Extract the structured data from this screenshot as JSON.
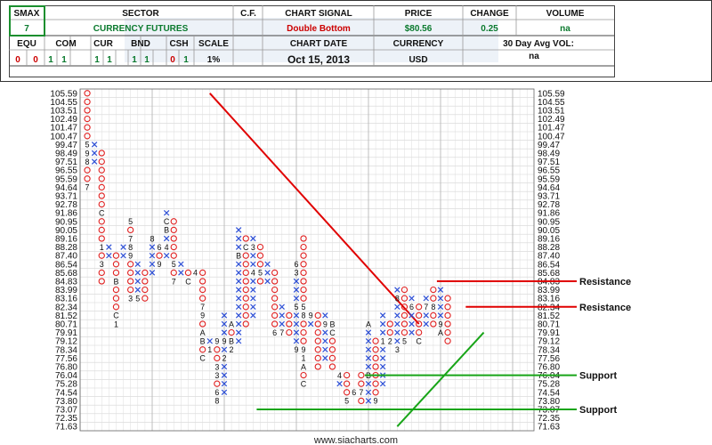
{
  "header": {
    "smax_label": "SMAX",
    "smax_value": "7",
    "sector_label": "SECTOR",
    "sector_value": "CURRENCY FUTURES",
    "cf_label": "C.F.",
    "signal_label": "CHART SIGNAL",
    "signal_value": "Double Bottom",
    "price_label": "PRICE",
    "price_value": "$80.56",
    "change_label": "CHANGE",
    "change_value": "0.25",
    "volume_label": "VOLUME",
    "volume_value": "na",
    "equ_label": "EQU",
    "com_label": "COM",
    "cur_label": "CUR",
    "bnd_label": "BND",
    "csh_label": "CSH",
    "scale_label": "SCALE",
    "date_label": "CHART DATE",
    "currency_label": "CURRENCY",
    "avgvol_label": "30 Day Avg VOL:",
    "equ_values": [
      "0",
      "0"
    ],
    "com_values": [
      "1",
      "1"
    ],
    "cur_values": [
      "1",
      "1"
    ],
    "bnd_values": [
      "1",
      "1"
    ],
    "csh_values": [
      "0",
      "1"
    ],
    "scale_value": "1%",
    "date_value": "Oct 15, 2013",
    "currency_value": "USD",
    "avgvol_value": "na",
    "colors": {
      "signal": "#cc0000",
      "value": "#0b7a2e",
      "accent_box": "#1a8f2e"
    }
  },
  "chart_data": {
    "type": "point-and-figure",
    "title": "",
    "y_ticks": [
      "105.59",
      "104.55",
      "103.51",
      "102.49",
      "101.47",
      "100.47",
      "99.47",
      "98.49",
      "97.51",
      "96.55",
      "95.59",
      "94.64",
      "93.71",
      "92.78",
      "91.86",
      "90.95",
      "90.05",
      "89.16",
      "88.28",
      "87.40",
      "86.54",
      "85.68",
      "84.83",
      "83.99",
      "83.16",
      "82.34",
      "81.52",
      "80.71",
      "79.91",
      "79.12",
      "78.34",
      "77.56",
      "76.80",
      "76.04",
      "75.28",
      "74.54",
      "73.80",
      "73.07",
      "72.35",
      "71.63"
    ],
    "columns": [
      {
        "type": "O",
        "from": 105.59,
        "to": 94.64,
        "labels": {
          "99.47": "5",
          "98.49": "9",
          "97.51": "8",
          "94.64": "7"
        }
      },
      {
        "type": "X",
        "from": 97.51,
        "to": 99.47
      },
      {
        "type": "O",
        "from": 98.49,
        "to": 84.83,
        "labels": {
          "91.86": "C",
          "88.28": "1",
          "86.54": "3"
        }
      },
      {
        "type": "X",
        "from": 87.4,
        "to": 88.28
      },
      {
        "type": "O",
        "from": 87.4,
        "to": 80.71,
        "labels": {
          "84.83": "B",
          "81.52": "C",
          "80.71": "1"
        }
      },
      {
        "type": "X",
        "from": 87.4,
        "to": 88.28
      },
      {
        "type": "O",
        "from": 90.95,
        "to": 83.16,
        "labels": {
          "90.95": "5",
          "89.16": "7",
          "88.28": "8",
          "87.40": "9",
          "83.16": "3"
        }
      },
      {
        "type": "X",
        "from": 83.16,
        "to": 86.54,
        "labels": {
          "83.16": "5"
        }
      },
      {
        "type": "O",
        "from": 85.68,
        "to": 83.16
      },
      {
        "type": "X",
        "from": 85.68,
        "to": 89.16,
        "labels": {
          "89.16": "8"
        }
      },
      {
        "type": "O",
        "from": 88.28,
        "to": 86.54,
        "labels": {
          "88.28": "6",
          "86.54": "9"
        }
      },
      {
        "type": "X",
        "from": 87.4,
        "to": 91.86,
        "labels": {
          "90.95": "C",
          "90.05": "B",
          "88.28": "4"
        }
      },
      {
        "type": "O",
        "from": 90.95,
        "to": 84.83,
        "labels": {
          "86.54": "5",
          "84.83": "7"
        }
      },
      {
        "type": "X",
        "from": 85.68,
        "to": 86.54
      },
      {
        "type": "O",
        "from": 85.68,
        "to": 84.83,
        "labels": {
          "84.83": "C"
        }
      },
      {
        "type": "X",
        "from": 85.68,
        "to": 85.68,
        "labels": {
          "85.68": "4"
        }
      },
      {
        "type": "O",
        "from": 85.68,
        "to": 77.56,
        "labels": {
          "82.34": "7",
          "81.52": "9",
          "79.91": "A",
          "79.12": "B",
          "77.56": "C"
        }
      },
      {
        "type": "X",
        "from": 78.34,
        "to": 79.12,
        "labels": {
          "78.34": "1"
        }
      },
      {
        "type": "O",
        "from": 79.12,
        "to": 73.8,
        "labels": {
          "79.12": "9",
          "76.80": "3",
          "76.04": "3",
          "74.54": "6",
          "73.80": "8"
        }
      },
      {
        "type": "X",
        "from": 74.54,
        "to": 81.52,
        "labels": {
          "79.12": "9",
          "77.56": "2"
        }
      },
      {
        "type": "O",
        "from": 80.71,
        "to": 78.34,
        "labels": {
          "80.71": "A",
          "79.12": "B",
          "78.34": "2"
        }
      },
      {
        "type": "X",
        "from": 79.12,
        "to": 90.05,
        "labels": {
          "87.40": "B"
        }
      },
      {
        "type": "O",
        "from": 89.16,
        "to": 80.71,
        "labels": {
          "88.28": "C"
        }
      },
      {
        "type": "X",
        "from": 81.52,
        "to": 89.16,
        "labels": {
          "88.28": "3",
          "85.68": "4"
        }
      },
      {
        "type": "O",
        "from": 88.28,
        "to": 84.83,
        "labels": {
          "85.68": "5"
        }
      },
      {
        "type": "X",
        "from": 84.83,
        "to": 86.54
      },
      {
        "type": "O",
        "from": 85.68,
        "to": 79.91,
        "labels": {
          "79.91": "6"
        }
      },
      {
        "type": "X",
        "from": 79.91,
        "to": 82.34,
        "labels": {
          "79.91": "7"
        }
      },
      {
        "type": "O",
        "from": 81.52,
        "to": 79.91
      },
      {
        "type": "X",
        "from": 78.34,
        "to": 86.54,
        "labels": {
          "78.34": "9",
          "86.54": "6",
          "85.68": "3",
          "82.34": "5"
        }
      },
      {
        "type": "O",
        "from": 89.16,
        "to": 75.28,
        "labels": {
          "82.34": "5",
          "81.52": "8",
          "78.34": "9",
          "77.56": "1",
          "76.80": "A",
          "75.28": "C"
        }
      },
      {
        "type": "X",
        "from": 80.71,
        "to": 81.52,
        "labels": {
          "81.52": "9"
        }
      },
      {
        "type": "O",
        "from": 81.52,
        "to": 76.8,
        "labels": {
          "82.34": "9"
        }
      },
      {
        "type": "X",
        "from": 77.56,
        "to": 81.52,
        "labels": {
          "80.71": "9"
        }
      },
      {
        "type": "O",
        "from": 80.71,
        "to": 76.8,
        "labels": {
          "80.71": "B",
          "79.91": "C"
        }
      },
      {
        "type": "X",
        "from": 75.28,
        "to": 76.04,
        "labels": {
          "76.04": "4"
        }
      },
      {
        "type": "O",
        "from": 76.04,
        "to": 73.8,
        "labels": {
          "73.80": "5"
        }
      },
      {
        "type": "X",
        "from": 74.54,
        "to": 74.54,
        "labels": {
          "74.54": "6"
        }
      },
      {
        "type": "O",
        "from": 76.04,
        "to": 73.8,
        "labels": {
          "74.54": "7"
        }
      },
      {
        "type": "X",
        "from": 73.8,
        "to": 80.71,
        "labels": {
          "80.71": "A",
          "76.04": "B"
        }
      },
      {
        "type": "O",
        "from": 79.12,
        "to": 73.8,
        "labels": {
          "73.80": "9"
        }
      },
      {
        "type": "X",
        "from": 75.28,
        "to": 81.52,
        "labels": {
          "79.12": "1"
        }
      },
      {
        "type": "O",
        "from": 80.71,
        "to": 79.12,
        "labels": {
          "79.12": "2"
        }
      },
      {
        "type": "X",
        "from": 78.34,
        "to": 83.99,
        "labels": {
          "83.16": "8",
          "78.34": "3"
        }
      },
      {
        "type": "O",
        "from": 83.99,
        "to": 79.12,
        "labels": {
          "79.12": "5"
        }
      },
      {
        "type": "X",
        "from": 79.91,
        "to": 83.16,
        "labels": {
          "82.34": "6"
        }
      },
      {
        "type": "O",
        "from": 82.34,
        "to": 79.12,
        "labels": {
          "79.12": "C"
        }
      },
      {
        "type": "X",
        "from": 80.71,
        "to": 83.16,
        "labels": {
          "82.34": "7"
        }
      },
      {
        "type": "O",
        "from": 83.99,
        "to": 80.71,
        "labels": {
          "82.34": "8"
        }
      },
      {
        "type": "X",
        "from": 79.91,
        "to": 83.99,
        "labels": {
          "80.71": "9",
          "79.91": "A"
        }
      },
      {
        "type": "O",
        "from": 83.16,
        "to": 79.12
      }
    ],
    "trendlines": [
      {
        "kind": "bearish-resistance",
        "color": "#e00000",
        "from": {
          "col": 17,
          "price": 105.59
        },
        "to": {
          "col": 46,
          "price": 80.71
        }
      },
      {
        "kind": "bullish-support",
        "color": "#18a518",
        "from": {
          "col": 43,
          "price": 71.63
        },
        "to": {
          "col": 55,
          "price": 79.91
        }
      }
    ],
    "levels": [
      {
        "price": 84.83,
        "label": "Resistance",
        "color": "#e00000",
        "from_col": 49
      },
      {
        "price": 82.34,
        "label": "Resistance",
        "color": "#e00000",
        "from_col": 53
      },
      {
        "price": 76.04,
        "label": "Support",
        "color": "#18a518",
        "from_col": 39
      },
      {
        "price": 73.07,
        "label": "Support",
        "color": "#18a518",
        "from_col": 24
      }
    ],
    "watermark": "www.siacharts.com",
    "grid": true
  }
}
